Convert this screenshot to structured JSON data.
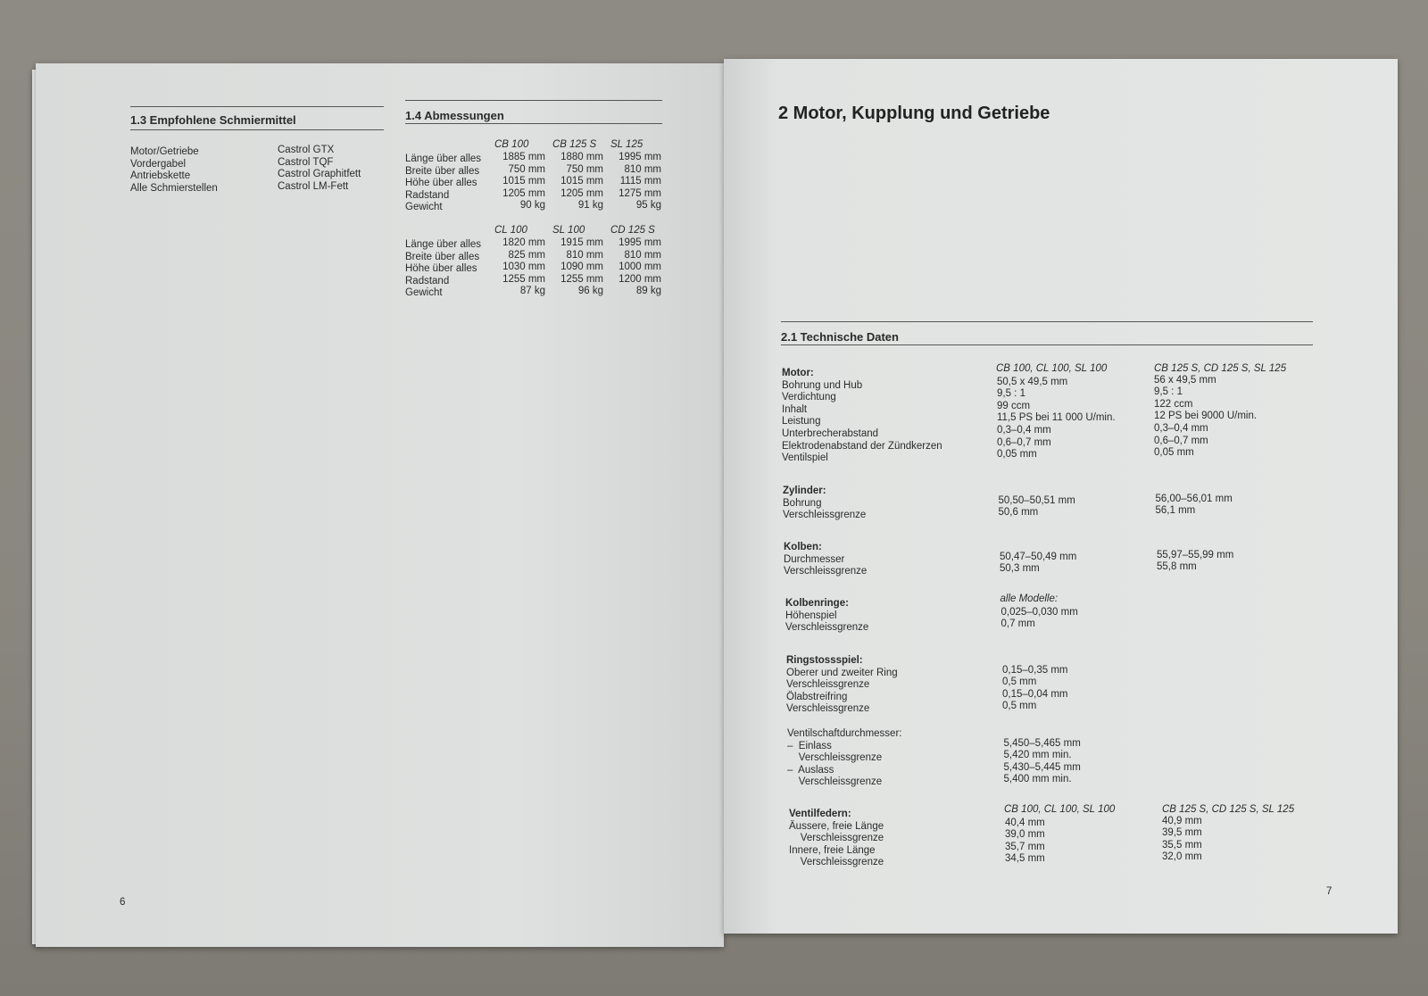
{
  "left_page": {
    "lubricants": {
      "heading": "1.3  Empfohlene Schmiermittel",
      "items": [
        {
          "part": "Motor/Getriebe",
          "product": "Castrol GTX"
        },
        {
          "part": "Vordergabel",
          "product": "Castrol TQF"
        },
        {
          "part": "Antriebskette",
          "product": "Castrol Graphitfett"
        },
        {
          "part": "Alle Schmierstellen",
          "product": "Castrol LM-Fett"
        }
      ]
    },
    "dimensions": {
      "heading": "1.4  Abmessungen",
      "tables": [
        {
          "models": [
            "CB 100",
            "CB 125 S",
            "SL 125"
          ],
          "rows": [
            {
              "label": "Länge über alles",
              "values": [
                "1885 mm",
                "1880 mm",
                "1995 mm"
              ]
            },
            {
              "label": "Breite über alles",
              "values": [
                "750 mm",
                "750 mm",
                "810 mm"
              ]
            },
            {
              "label": "Höhe über alles",
              "values": [
                "1015 mm",
                "1015 mm",
                "1115 mm"
              ]
            },
            {
              "label": "Radstand",
              "values": [
                "1205 mm",
                "1205 mm",
                "1275 mm"
              ]
            },
            {
              "label": "Gewicht",
              "values": [
                "90 kg",
                "91 kg",
                "95 kg"
              ]
            }
          ]
        },
        {
          "models": [
            "CL 100",
            "SL 100",
            "CD 125 S"
          ],
          "rows": [
            {
              "label": "Länge über alles",
              "values": [
                "1820 mm",
                "1915 mm",
                "1995 mm"
              ]
            },
            {
              "label": "Breite über alles",
              "values": [
                "825 mm",
                "810 mm",
                "810 mm"
              ]
            },
            {
              "label": "Höhe über alles",
              "values": [
                "1030 mm",
                "1090 mm",
                "1000 mm"
              ]
            },
            {
              "label": "Radstand",
              "values": [
                "1255 mm",
                "1255 mm",
                "1200 mm"
              ]
            },
            {
              "label": "Gewicht",
              "values": [
                "87 kg",
                "96 kg",
                "89 kg"
              ]
            }
          ]
        }
      ]
    },
    "page_number": "6"
  },
  "right_page": {
    "chapter_title": "2  Motor, Kupplung und Getriebe",
    "section_heading": "2.1  Technische Daten",
    "sections": [
      {
        "title": "Motor:",
        "header": [
          "CB 100, CL 100, SL 100",
          "CB 125 S, CD 125 S, SL 125"
        ],
        "rows": [
          [
            "Bohrung und Hub",
            "50,5 x 49,5 mm",
            "56 x 49,5 mm"
          ],
          [
            "Verdichtung",
            "9,5 : 1",
            "9,5 : 1"
          ],
          [
            "Inhalt",
            "99 ccm",
            "122 ccm"
          ],
          [
            "Leistung",
            "11,5 PS bei 11 000 U/min.",
            "12 PS bei 9000 U/min."
          ],
          [
            "Unterbrecherabstand",
            "0,3–0,4 mm",
            "0,3–0,4 mm"
          ],
          [
            "Elektrodenabstand der Zündkerzen",
            "0,6–0,7 mm",
            "0,6–0,7 mm"
          ],
          [
            "Ventilspiel",
            "0,05 mm",
            "0,05 mm"
          ]
        ]
      },
      {
        "title": "Zylinder:",
        "rows": [
          [
            "Bohrung",
            "50,50–50,51 mm",
            "56,00–56,01 mm"
          ],
          [
            "Verschleissgrenze",
            "50,6 mm",
            "56,1 mm"
          ]
        ]
      },
      {
        "title": "Kolben:",
        "rows": [
          [
            "Durchmesser",
            "50,47–50,49 mm",
            "55,97–55,99 mm"
          ],
          [
            "Verschleissgrenze",
            "50,3 mm",
            "55,8 mm"
          ]
        ]
      },
      {
        "title": "Kolbenringe:",
        "header": [
          "alle Modelle:",
          ""
        ],
        "rows": [
          [
            "Höhenspiel",
            "0,025–0,030 mm",
            ""
          ],
          [
            "Verschleissgrenze",
            "0,7 mm",
            ""
          ]
        ]
      },
      {
        "title": "Ringstossspiel:",
        "rows": [
          [
            "Oberer und zweiter Ring",
            "0,15–0,35 mm",
            ""
          ],
          [
            "Verschleissgrenze",
            "0,5 mm",
            ""
          ],
          [
            "Ölabstreifring",
            "0,15–0,04 mm",
            ""
          ],
          [
            "Verschleissgrenze",
            "0,5 mm",
            ""
          ]
        ]
      },
      {
        "title": "Ventilschaftdurchmesser:",
        "title_plain": true,
        "rows": [
          [
            "–  Einlass",
            "5,450–5,465 mm",
            ""
          ],
          [
            "    Verschleissgrenze",
            "5,420 mm min.",
            ""
          ],
          [
            "–  Auslass",
            "5,430–5,445 mm",
            ""
          ],
          [
            "    Verschleissgrenze",
            "5,400 mm min.",
            ""
          ]
        ]
      },
      {
        "title": "Ventilfedern:",
        "header": [
          "CB 100, CL 100, SL 100",
          "CB 125 S, CD 125 S, SL 125"
        ],
        "rows": [
          [
            "Äussere, freie Länge",
            "40,4 mm",
            "40,9 mm"
          ],
          [
            "    Verschleissgrenze",
            "39,0 mm",
            "39,5 mm"
          ],
          [
            "Innere, freie Länge",
            "35,7 mm",
            "35,5 mm"
          ],
          [
            "    Verschleissgrenze",
            "34,5 mm",
            "32,0 mm"
          ]
        ]
      }
    ],
    "page_number": "7"
  }
}
